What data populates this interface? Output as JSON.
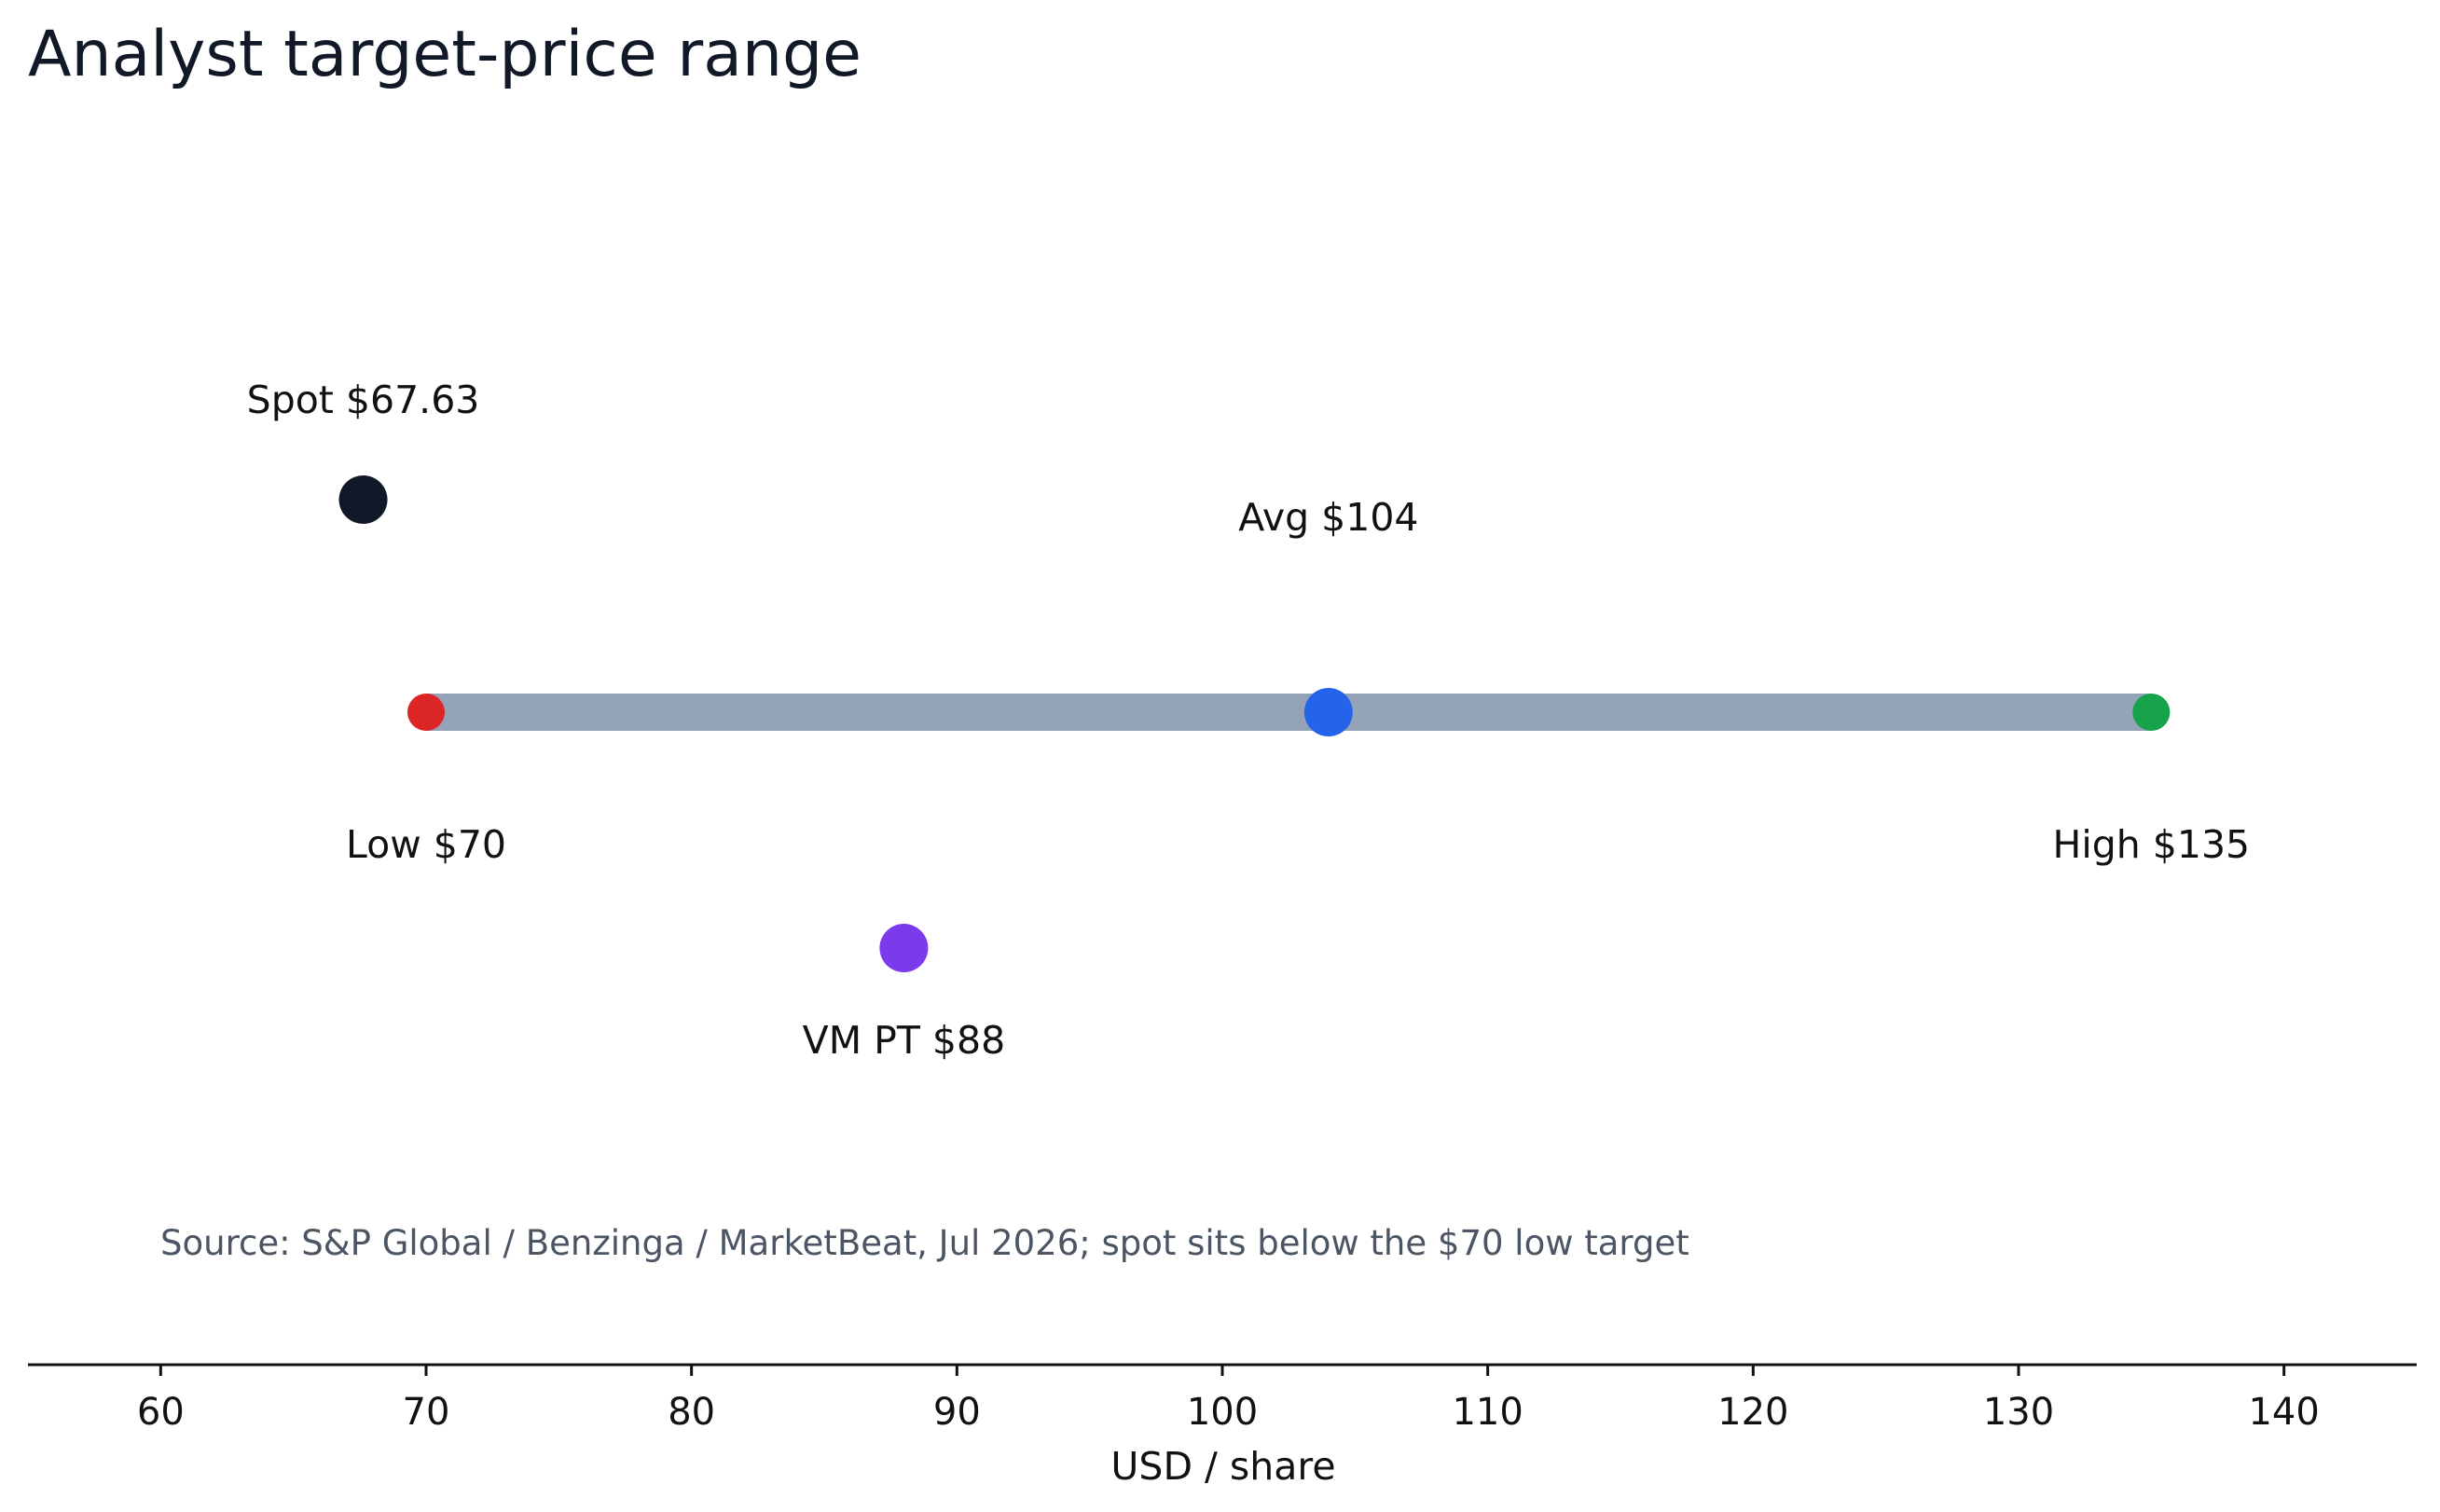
{
  "chart_data": {
    "type": "dot-range",
    "title": "Analyst target-price range",
    "xlabel": "USD / share",
    "xlim": [
      55,
      145
    ],
    "xticks": [
      60,
      70,
      80,
      90,
      100,
      110,
      120,
      130,
      140
    ],
    "grid": false,
    "range": {
      "low": 70,
      "high": 135,
      "color": "#94a3b8"
    },
    "points": [
      {
        "key": "spot",
        "label": "Spot $67.63",
        "value": 67.63,
        "color": "#111827",
        "lane": "upper"
      },
      {
        "key": "low",
        "label": "Low $70",
        "value": 70,
        "color": "#dc2626",
        "lane": "range"
      },
      {
        "key": "avg",
        "label": "Avg $104",
        "value": 104,
        "color": "#2563eb",
        "lane": "range"
      },
      {
        "key": "high",
        "label": "High $135",
        "value": 135,
        "color": "#16a34a",
        "lane": "range"
      },
      {
        "key": "vm-pt",
        "label": "VM PT $88",
        "value": 88,
        "color": "#7c3aed",
        "lane": "lower"
      }
    ],
    "source_note": "Source: S&P Global / Benzinga / MarketBeat, Jul 2026; spot sits below the $70 low target",
    "source_color": "#4b5563"
  }
}
